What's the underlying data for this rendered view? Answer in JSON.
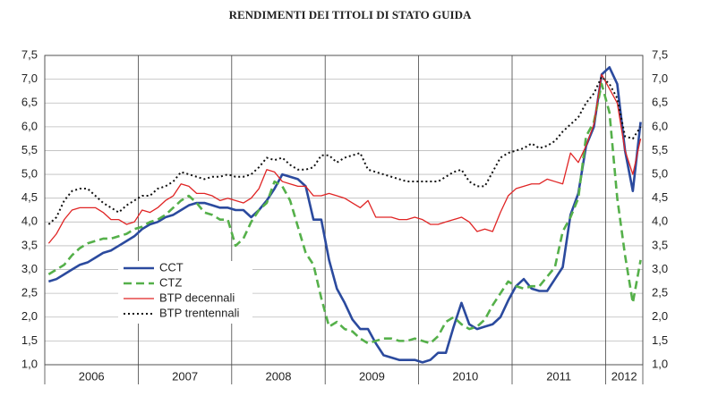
{
  "chart_data": {
    "type": "line",
    "title": "RENDIMENTI DEI TITOLI DI STATO GUIDA",
    "x_labels": [
      "2006",
      "2007",
      "2008",
      "2009",
      "2010",
      "2011",
      "2012"
    ],
    "ylim": [
      1.0,
      7.5
    ],
    "yticks": [
      {
        "value": 1.0,
        "label": "1,0"
      },
      {
        "value": 1.5,
        "label": "1,5"
      },
      {
        "value": 2.0,
        "label": "2,0"
      },
      {
        "value": 2.5,
        "label": "2,5"
      },
      {
        "value": 3.0,
        "label": "3,0"
      },
      {
        "value": 3.5,
        "label": "3,5"
      },
      {
        "value": 4.0,
        "label": "4,0"
      },
      {
        "value": 4.5,
        "label": "4,5"
      },
      {
        "value": 5.0,
        "label": "5,0"
      },
      {
        "value": 5.5,
        "label": "5,5"
      },
      {
        "value": 6.0,
        "label": "6,0"
      },
      {
        "value": 6.5,
        "label": "6,5"
      },
      {
        "value": 7.0,
        "label": "7,0"
      },
      {
        "value": 7.5,
        "label": "7,5"
      }
    ],
    "grid": true,
    "series": [
      {
        "name": "CCT",
        "color": "#2b4a9e",
        "style": "solid",
        "width": 2.6,
        "values": [
          2.75,
          2.8,
          2.9,
          3.0,
          3.1,
          3.15,
          3.25,
          3.35,
          3.4,
          3.5,
          3.6,
          3.7,
          3.85,
          3.95,
          4.0,
          4.1,
          4.15,
          4.25,
          4.35,
          4.4,
          4.4,
          4.35,
          4.3,
          4.3,
          4.25,
          4.25,
          4.1,
          4.25,
          4.45,
          4.7,
          5.0,
          4.95,
          4.9,
          4.75,
          4.05,
          4.05,
          3.2,
          2.6,
          2.3,
          1.95,
          1.75,
          1.75,
          1.45,
          1.2,
          1.15,
          1.1,
          1.1,
          1.1,
          1.05,
          1.1,
          1.25,
          1.25,
          1.8,
          2.3,
          1.85,
          1.75,
          1.8,
          1.85,
          2.0,
          2.35,
          2.65,
          2.8,
          2.6,
          2.55,
          2.55,
          2.8,
          3.05,
          4.15,
          4.6,
          5.6,
          6.0,
          7.1,
          7.25,
          6.9,
          5.5,
          4.65,
          6.1
        ]
      },
      {
        "name": "CTZ",
        "color": "#55b04a",
        "style": "dashed",
        "width": 2.6,
        "values": [
          2.9,
          3.0,
          3.1,
          3.3,
          3.45,
          3.55,
          3.6,
          3.65,
          3.65,
          3.7,
          3.75,
          3.85,
          3.9,
          4.0,
          4.05,
          4.15,
          4.3,
          4.45,
          4.55,
          4.4,
          4.2,
          4.15,
          4.05,
          4.05,
          3.5,
          3.65,
          4.0,
          4.25,
          4.4,
          4.85,
          4.75,
          4.45,
          3.9,
          3.35,
          3.1,
          2.4,
          1.8,
          1.9,
          1.75,
          1.7,
          1.55,
          1.45,
          1.5,
          1.55,
          1.55,
          1.5,
          1.5,
          1.55,
          1.5,
          1.45,
          1.6,
          1.9,
          2.0,
          1.85,
          1.75,
          1.8,
          1.95,
          2.25,
          2.5,
          2.75,
          2.65,
          2.6,
          2.65,
          2.65,
          2.85,
          3.05,
          3.8,
          4.1,
          4.5,
          5.8,
          6.1,
          6.9,
          6.3,
          4.5,
          3.3,
          2.3,
          3.2
        ]
      },
      {
        "name": "BTP decennali",
        "color": "#e02424",
        "style": "solid",
        "width": 1.3,
        "values": [
          3.55,
          3.75,
          4.05,
          4.25,
          4.3,
          4.3,
          4.3,
          4.2,
          4.05,
          4.05,
          3.95,
          4.0,
          4.25,
          4.2,
          4.3,
          4.45,
          4.55,
          4.8,
          4.75,
          4.6,
          4.6,
          4.55,
          4.45,
          4.5,
          4.45,
          4.4,
          4.5,
          4.7,
          5.1,
          5.05,
          4.85,
          4.8,
          4.75,
          4.75,
          4.55,
          4.55,
          4.6,
          4.55,
          4.5,
          4.4,
          4.3,
          4.45,
          4.1,
          4.1,
          4.1,
          4.05,
          4.05,
          4.1,
          4.05,
          3.95,
          3.95,
          4.0,
          4.05,
          4.1,
          4.0,
          3.8,
          3.85,
          3.8,
          4.2,
          4.55,
          4.7,
          4.75,
          4.8,
          4.8,
          4.9,
          4.85,
          4.8,
          5.45,
          5.25,
          5.6,
          6.05,
          7.1,
          6.8,
          6.5,
          5.5,
          5.0,
          5.75
        ]
      },
      {
        "name": "BTP trentennali",
        "color": "#111111",
        "style": "dotted",
        "width": 2,
        "values": [
          3.95,
          4.1,
          4.45,
          4.65,
          4.7,
          4.7,
          4.55,
          4.4,
          4.3,
          4.2,
          4.35,
          4.45,
          4.55,
          4.55,
          4.7,
          4.75,
          4.85,
          5.05,
          5.0,
          4.95,
          4.9,
          4.95,
          4.95,
          5.0,
          4.95,
          4.95,
          5.0,
          5.15,
          5.35,
          5.3,
          5.35,
          5.2,
          5.1,
          5.1,
          5.15,
          5.4,
          5.4,
          5.25,
          5.35,
          5.4,
          5.45,
          5.1,
          5.05,
          5.0,
          4.95,
          4.9,
          4.85,
          4.85,
          4.85,
          4.85,
          4.85,
          4.95,
          5.05,
          5.1,
          4.85,
          4.75,
          4.75,
          5.05,
          5.35,
          5.45,
          5.5,
          5.55,
          5.65,
          5.55,
          5.6,
          5.7,
          5.9,
          6.05,
          6.2,
          6.5,
          6.7,
          7.05,
          6.9,
          6.6,
          5.8,
          5.75,
          6.0
        ]
      }
    ]
  }
}
